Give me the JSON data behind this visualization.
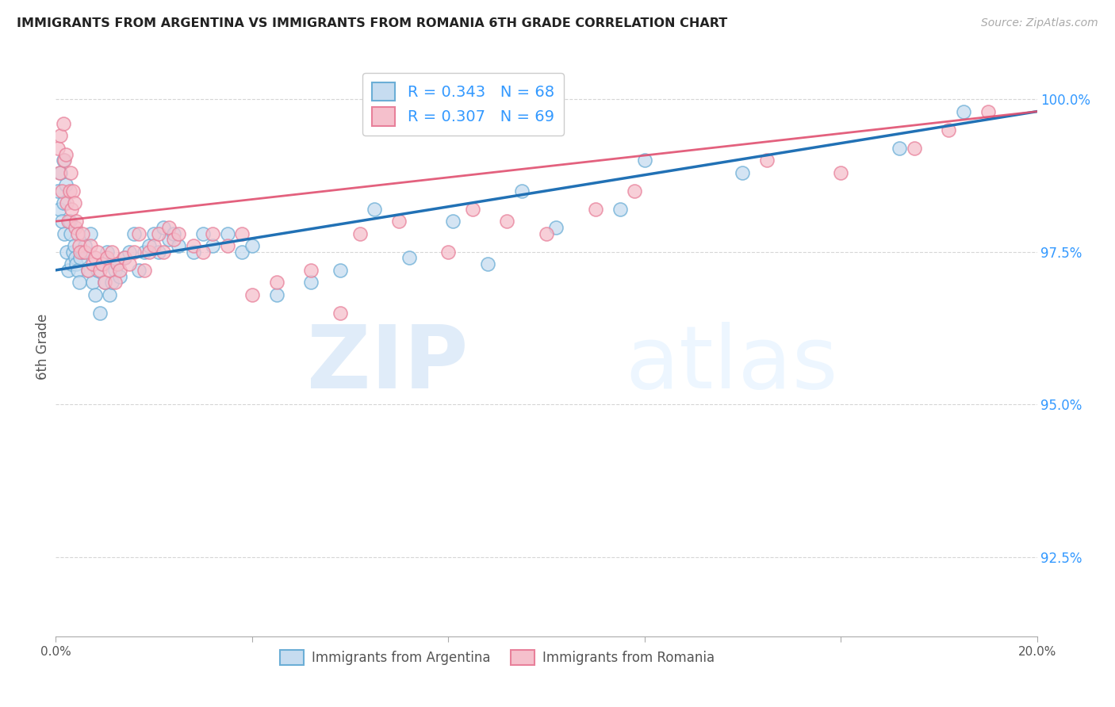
{
  "title": "IMMIGRANTS FROM ARGENTINA VS IMMIGRANTS FROM ROMANIA 6TH GRADE CORRELATION CHART",
  "source": "Source: ZipAtlas.com",
  "ylabel": "6th Grade",
  "yticks": [
    92.5,
    95.0,
    97.5,
    100.0
  ],
  "ytick_labels": [
    "92.5%",
    "95.0%",
    "97.5%",
    "100.0%"
  ],
  "xmin": 0.0,
  "xmax": 20.0,
  "ymin": 91.2,
  "ymax": 100.7,
  "argentina_color_edge": "#6baed6",
  "argentina_color_fill": "#c6dcf0",
  "romania_color_edge": "#e8809a",
  "romania_color_fill": "#f5c0cc",
  "argentina_line_color": "#2171b5",
  "romania_line_color": "#e05070",
  "legend_R_argentina": "0.343",
  "legend_N_argentina": "68",
  "legend_R_romania": "0.307",
  "legend_N_romania": "69",
  "argentina_x": [
    0.05,
    0.08,
    0.1,
    0.12,
    0.15,
    0.15,
    0.18,
    0.2,
    0.22,
    0.25,
    0.28,
    0.3,
    0.32,
    0.35,
    0.38,
    0.4,
    0.42,
    0.45,
    0.48,
    0.5,
    0.55,
    0.6,
    0.65,
    0.7,
    0.75,
    0.8,
    0.85,
    0.9,
    0.95,
    1.0,
    1.05,
    1.1,
    1.15,
    1.2,
    1.25,
    1.3,
    1.4,
    1.5,
    1.6,
    1.7,
    1.8,
    1.9,
    2.0,
    2.1,
    2.2,
    2.3,
    2.4,
    2.5,
    2.8,
    3.0,
    3.2,
    3.5,
    3.8,
    4.0,
    4.5,
    5.2,
    5.8,
    6.5,
    7.2,
    8.1,
    8.8,
    9.5,
    10.2,
    11.5,
    12.0,
    14.0,
    17.2,
    18.5
  ],
  "argentina_y": [
    98.5,
    98.2,
    98.8,
    98.0,
    99.0,
    98.3,
    97.8,
    98.6,
    97.5,
    97.2,
    98.0,
    97.8,
    97.3,
    97.5,
    97.6,
    97.4,
    97.3,
    97.2,
    97.0,
    97.4,
    97.5,
    97.6,
    97.2,
    97.8,
    97.0,
    96.8,
    97.2,
    96.5,
    97.3,
    97.0,
    97.5,
    96.8,
    97.0,
    97.2,
    97.3,
    97.1,
    97.4,
    97.5,
    97.8,
    97.2,
    97.5,
    97.6,
    97.8,
    97.5,
    97.9,
    97.7,
    97.8,
    97.6,
    97.5,
    97.8,
    97.6,
    97.8,
    97.5,
    97.6,
    96.8,
    97.0,
    97.2,
    98.2,
    97.4,
    98.0,
    97.3,
    98.5,
    97.9,
    98.2,
    99.0,
    98.8,
    99.2,
    99.8
  ],
  "romania_x": [
    0.05,
    0.08,
    0.1,
    0.12,
    0.15,
    0.18,
    0.2,
    0.22,
    0.25,
    0.28,
    0.3,
    0.32,
    0.35,
    0.38,
    0.4,
    0.42,
    0.45,
    0.48,
    0.5,
    0.55,
    0.6,
    0.65,
    0.7,
    0.75,
    0.8,
    0.85,
    0.9,
    0.95,
    1.0,
    1.05,
    1.1,
    1.15,
    1.2,
    1.25,
    1.3,
    1.4,
    1.5,
    1.6,
    1.7,
    1.8,
    1.9,
    2.0,
    2.1,
    2.2,
    2.3,
    2.4,
    2.5,
    2.8,
    3.0,
    3.2,
    3.5,
    3.8,
    4.0,
    4.5,
    5.2,
    5.8,
    6.2,
    7.0,
    8.0,
    8.5,
    9.2,
    10.0,
    11.0,
    11.8,
    14.5,
    16.0,
    17.5,
    18.2,
    19.0
  ],
  "romania_y": [
    99.2,
    98.8,
    99.4,
    98.5,
    99.6,
    99.0,
    99.1,
    98.3,
    98.0,
    98.5,
    98.8,
    98.2,
    98.5,
    98.3,
    97.9,
    98.0,
    97.8,
    97.6,
    97.5,
    97.8,
    97.5,
    97.2,
    97.6,
    97.3,
    97.4,
    97.5,
    97.2,
    97.3,
    97.0,
    97.4,
    97.2,
    97.5,
    97.0,
    97.3,
    97.2,
    97.4,
    97.3,
    97.5,
    97.8,
    97.2,
    97.5,
    97.6,
    97.8,
    97.5,
    97.9,
    97.7,
    97.8,
    97.6,
    97.5,
    97.8,
    97.6,
    97.8,
    96.8,
    97.0,
    97.2,
    96.5,
    97.8,
    98.0,
    97.5,
    98.2,
    98.0,
    97.8,
    98.2,
    98.5,
    99.0,
    98.8,
    99.2,
    99.5,
    99.8
  ]
}
